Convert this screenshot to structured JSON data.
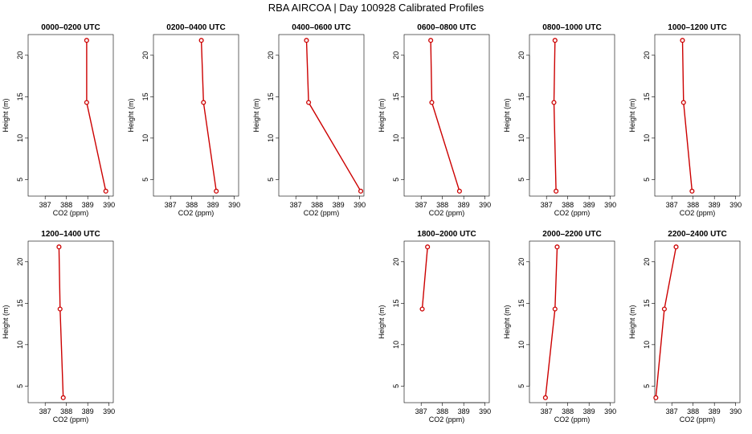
{
  "title": "RBA AIRCOA |  Day 100928  Calibrated Profiles",
  "chart_data": [
    {
      "type": "line",
      "title": "0000–0200 UTC",
      "xlabel": "CO2 (ppm)",
      "ylabel": "Height (m)",
      "xlim": [
        386.2,
        390.2
      ],
      "ylim": [
        3,
        22.5
      ],
      "xticks": [
        "387",
        "388",
        "389",
        "390"
      ],
      "yticks": [
        "5",
        "10",
        "15",
        "20"
      ],
      "points": [
        {
          "x": 388.95,
          "y": 21.8
        },
        {
          "x": 388.95,
          "y": 14.3
        },
        {
          "x": 389.85,
          "y": 3.6
        }
      ]
    },
    {
      "type": "line",
      "title": "0200–0400 UTC",
      "xlabel": "CO2 (ppm)",
      "ylabel": "Height (m)",
      "xlim": [
        386.2,
        390.2
      ],
      "ylim": [
        3,
        22.5
      ],
      "xticks": [
        "387",
        "388",
        "389",
        "390"
      ],
      "yticks": [
        "5",
        "10",
        "15",
        "20"
      ],
      "points": [
        {
          "x": 388.45,
          "y": 21.8
        },
        {
          "x": 388.55,
          "y": 14.3
        },
        {
          "x": 389.15,
          "y": 3.6
        }
      ]
    },
    {
      "type": "line",
      "title": "0400–0600 UTC",
      "xlabel": "CO2 (ppm)",
      "ylabel": "Height (m)",
      "xlim": [
        386.2,
        390.2
      ],
      "ylim": [
        3,
        22.5
      ],
      "xticks": [
        "387",
        "388",
        "389",
        "390"
      ],
      "yticks": [
        "5",
        "10",
        "15",
        "20"
      ],
      "points": [
        {
          "x": 387.5,
          "y": 21.8
        },
        {
          "x": 387.6,
          "y": 14.3
        },
        {
          "x": 390.05,
          "y": 3.6
        }
      ]
    },
    {
      "type": "line",
      "title": "0600–0800 UTC",
      "xlabel": "CO2 (ppm)",
      "ylabel": "Height (m)",
      "xlim": [
        386.2,
        390.2
      ],
      "ylim": [
        3,
        22.5
      ],
      "xticks": [
        "387",
        "388",
        "389",
        "390"
      ],
      "yticks": [
        "5",
        "10",
        "15",
        "20"
      ],
      "points": [
        {
          "x": 387.45,
          "y": 21.8
        },
        {
          "x": 387.5,
          "y": 14.3
        },
        {
          "x": 388.8,
          "y": 3.6
        }
      ]
    },
    {
      "type": "line",
      "title": "0800–1000 UTC",
      "xlabel": "CO2 (ppm)",
      "ylabel": "Height (m)",
      "xlim": [
        386.2,
        390.2
      ],
      "ylim": [
        3,
        22.5
      ],
      "xticks": [
        "387",
        "388",
        "389",
        "390"
      ],
      "yticks": [
        "5",
        "10",
        "15",
        "20"
      ],
      "points": [
        {
          "x": 387.4,
          "y": 21.8
        },
        {
          "x": 387.35,
          "y": 14.3
        },
        {
          "x": 387.45,
          "y": 3.6
        }
      ]
    },
    {
      "type": "line",
      "title": "1000–1200 UTC",
      "xlabel": "CO2 (ppm)",
      "ylabel": "Height (m)",
      "xlim": [
        386.2,
        390.2
      ],
      "ylim": [
        3,
        22.5
      ],
      "xticks": [
        "387",
        "388",
        "389",
        "390"
      ],
      "yticks": [
        "5",
        "10",
        "15",
        "20"
      ],
      "points": [
        {
          "x": 387.5,
          "y": 21.8
        },
        {
          "x": 387.55,
          "y": 14.3
        },
        {
          "x": 387.95,
          "y": 3.6
        }
      ]
    },
    {
      "type": "line",
      "title": "1200–1400 UTC",
      "xlabel": "CO2 (ppm)",
      "ylabel": "Height (m)",
      "xlim": [
        386.2,
        390.2
      ],
      "ylim": [
        3,
        22.5
      ],
      "xticks": [
        "387",
        "388",
        "389",
        "390"
      ],
      "yticks": [
        "5",
        "10",
        "15",
        "20"
      ],
      "points": [
        {
          "x": 387.65,
          "y": 21.8
        },
        {
          "x": 387.7,
          "y": 14.3
        },
        {
          "x": 387.85,
          "y": 3.6
        }
      ]
    },
    null,
    null,
    {
      "type": "line",
      "title": "1800–2000 UTC",
      "xlabel": "CO2 (ppm)",
      "ylabel": "Height (m)",
      "xlim": [
        386.2,
        390.2
      ],
      "ylim": [
        3,
        22.5
      ],
      "xticks": [
        "387",
        "388",
        "389",
        "390"
      ],
      "yticks": [
        "5",
        "10",
        "15",
        "20"
      ],
      "points": [
        {
          "x": 387.3,
          "y": 21.8
        },
        {
          "x": 387.05,
          "y": 14.3
        }
      ]
    },
    {
      "type": "line",
      "title": "2000–2200 UTC",
      "xlabel": "CO2 (ppm)",
      "ylabel": "Height (m)",
      "xlim": [
        386.2,
        390.2
      ],
      "ylim": [
        3,
        22.5
      ],
      "xticks": [
        "387",
        "388",
        "389",
        "390"
      ],
      "yticks": [
        "5",
        "10",
        "15",
        "20"
      ],
      "points": [
        {
          "x": 387.5,
          "y": 21.8
        },
        {
          "x": 387.4,
          "y": 14.3
        },
        {
          "x": 386.95,
          "y": 3.6
        }
      ]
    },
    {
      "type": "line",
      "title": "2200–2400 UTC",
      "xlabel": "CO2 (ppm)",
      "ylabel": "Height (m)",
      "xlim": [
        386.2,
        390.2
      ],
      "ylim": [
        3,
        22.5
      ],
      "xticks": [
        "387",
        "388",
        "389",
        "390"
      ],
      "yticks": [
        "5",
        "10",
        "15",
        "20"
      ],
      "points": [
        {
          "x": 387.2,
          "y": 21.8
        },
        {
          "x": 386.65,
          "y": 14.3
        },
        {
          "x": 386.25,
          "y": 3.6
        }
      ]
    }
  ],
  "colors": {
    "line": "#cc0000",
    "marker": "#cc0000",
    "axis": "#000000"
  }
}
